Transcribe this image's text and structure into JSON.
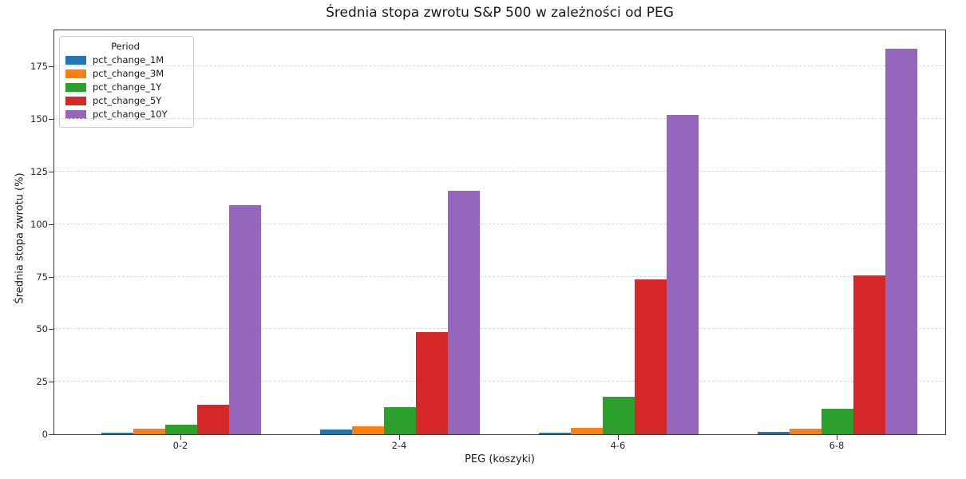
{
  "chart_data": {
    "type": "bar",
    "title": "Średnia stopa zwrotu S&P 500 w zależności od PEG",
    "xlabel": "PEG (koszyki)",
    "ylabel": "Średnia stopa zwrotu (%)",
    "legend_title": "Period",
    "legend_position": "upper left",
    "categories": [
      "0-2",
      "2-4",
      "4-6",
      "6-8"
    ],
    "series": [
      {
        "name": "pct_change_1M",
        "color": "#1f77b4",
        "values": [
          0.8,
          2.3,
          0.9,
          1.2
        ]
      },
      {
        "name": "pct_change_3M",
        "color": "#ff7f0e",
        "values": [
          2.6,
          3.9,
          3.2,
          2.7
        ]
      },
      {
        "name": "pct_change_1Y",
        "color": "#2ca02c",
        "values": [
          4.4,
          12.8,
          18.0,
          12.0
        ]
      },
      {
        "name": "pct_change_5Y",
        "color": "#d62728",
        "values": [
          14.2,
          48.6,
          73.8,
          75.8
        ]
      },
      {
        "name": "pct_change_10Y",
        "color": "#9467bd",
        "values": [
          109.0,
          116.0,
          152.0,
          183.5
        ]
      }
    ],
    "yticks": [
      0,
      25,
      50,
      75,
      100,
      125,
      150,
      175
    ],
    "ylim": [
      0,
      193
    ],
    "grid": "horizontal-dashed",
    "frame_color": "#3a3a3a",
    "gridline_color": "#d9d9d9"
  }
}
